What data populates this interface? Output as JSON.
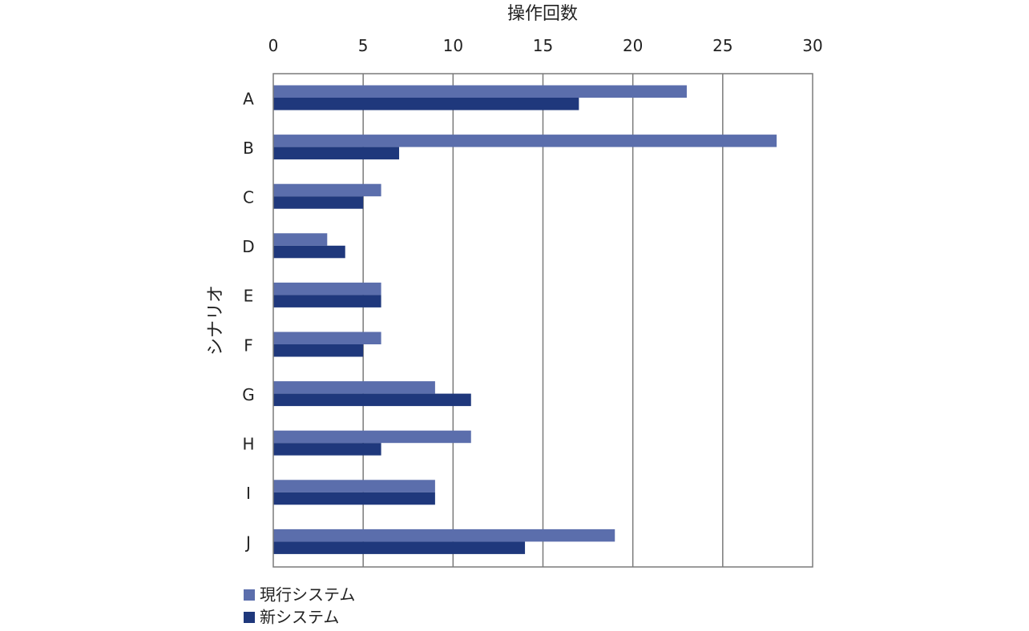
{
  "chart_data": {
    "type": "bar",
    "orientation": "horizontal",
    "xlabel": "操作回数",
    "ylabel": "シナリオ",
    "xlim": [
      0,
      30
    ],
    "x_ticks": [
      0,
      5,
      10,
      15,
      20,
      25,
      30
    ],
    "x_axis_position": "top",
    "grid": true,
    "legend_position": "bottom-left",
    "categories": [
      "A",
      "B",
      "C",
      "D",
      "E",
      "F",
      "G",
      "H",
      "I",
      "J"
    ],
    "series": [
      {
        "name": "現行システム",
        "color": "#5b6eac",
        "values": [
          23,
          28,
          6,
          3,
          6,
          6,
          9,
          11,
          9,
          19
        ]
      },
      {
        "name": "新システム",
        "color": "#1f387c",
        "values": [
          17,
          7,
          5,
          4,
          6,
          5,
          11,
          6,
          9,
          14
        ]
      }
    ]
  }
}
